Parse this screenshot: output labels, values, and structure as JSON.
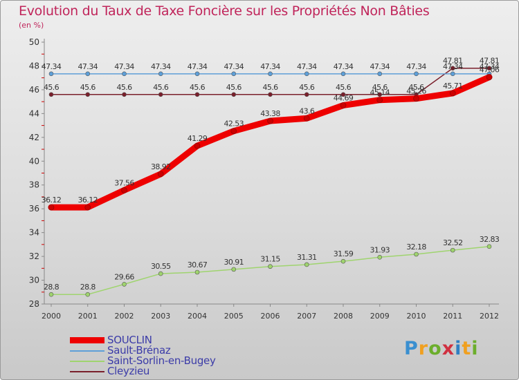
{
  "chart_data": {
    "type": "line",
    "title": "Evolution du Taux de Taxe Foncière sur les Propriétés Non Bâties",
    "ylabel": "(en %)",
    "xlabel": "",
    "ylim": [
      28,
      50
    ],
    "yticks": [
      28,
      30,
      32,
      34,
      36,
      38,
      40,
      42,
      44,
      46,
      48,
      50
    ],
    "grid": false,
    "categories": [
      "2000",
      "2001",
      "2002",
      "2003",
      "2004",
      "2005",
      "2006",
      "2007",
      "2008",
      "2009",
      "2010",
      "2011",
      "2012"
    ],
    "series": [
      {
        "name": "SOUCLIN",
        "color": "#ee0000",
        "values": [
          36.12,
          36.12,
          37.56,
          38.92,
          41.29,
          42.53,
          43.38,
          43.6,
          44.69,
          45.14,
          45.26,
          45.71,
          47.06
        ],
        "labels": [
          "36.12",
          "36.12",
          "37.56",
          "38.92",
          "41.29",
          "42.53",
          "43.38",
          "43.6",
          "44.69",
          "45.14",
          "45.26",
          "45.71",
          "47.06"
        ]
      },
      {
        "name": "Sault-Brénaz",
        "color": "#5d9fd8",
        "values": [
          47.34,
          47.34,
          47.34,
          47.34,
          47.34,
          47.34,
          47.34,
          47.34,
          47.34,
          47.34,
          47.34,
          47.34,
          47.34
        ],
        "labels": [
          "47.34",
          "47.34",
          "47.34",
          "47.34",
          "47.34",
          "47.34",
          "47.34",
          "47.34",
          "47.34",
          "47.34",
          "47.34",
          "47.34",
          "47.34"
        ]
      },
      {
        "name": "Saint-Sorlin-en-Bugey",
        "color": "#9fd46e",
        "values": [
          28.8,
          28.8,
          29.66,
          30.55,
          30.67,
          30.91,
          31.15,
          31.31,
          31.59,
          31.93,
          32.18,
          32.52,
          32.83
        ],
        "labels": [
          "28.8",
          "28.8",
          "29.66",
          "30.55",
          "30.67",
          "30.91",
          "31.15",
          "31.31",
          "31.59",
          "31.93",
          "32.18",
          "32.52",
          "32.83"
        ]
      },
      {
        "name": "Cleyzieu",
        "color": "#7a1f2b",
        "values": [
          45.6,
          45.6,
          45.6,
          45.6,
          45.6,
          45.6,
          45.6,
          45.6,
          45.6,
          45.6,
          45.6,
          47.81,
          47.81
        ],
        "labels": [
          "45.6",
          "45.6",
          "45.6",
          "45.6",
          "45.6",
          "45.6",
          "45.6",
          "45.6",
          "45.6",
          "45.6",
          "45.6",
          "47.81",
          "47.81"
        ]
      }
    ]
  },
  "logo": {
    "parts": [
      "P",
      "r",
      "o",
      "x",
      "i",
      "t",
      "i"
    ]
  }
}
